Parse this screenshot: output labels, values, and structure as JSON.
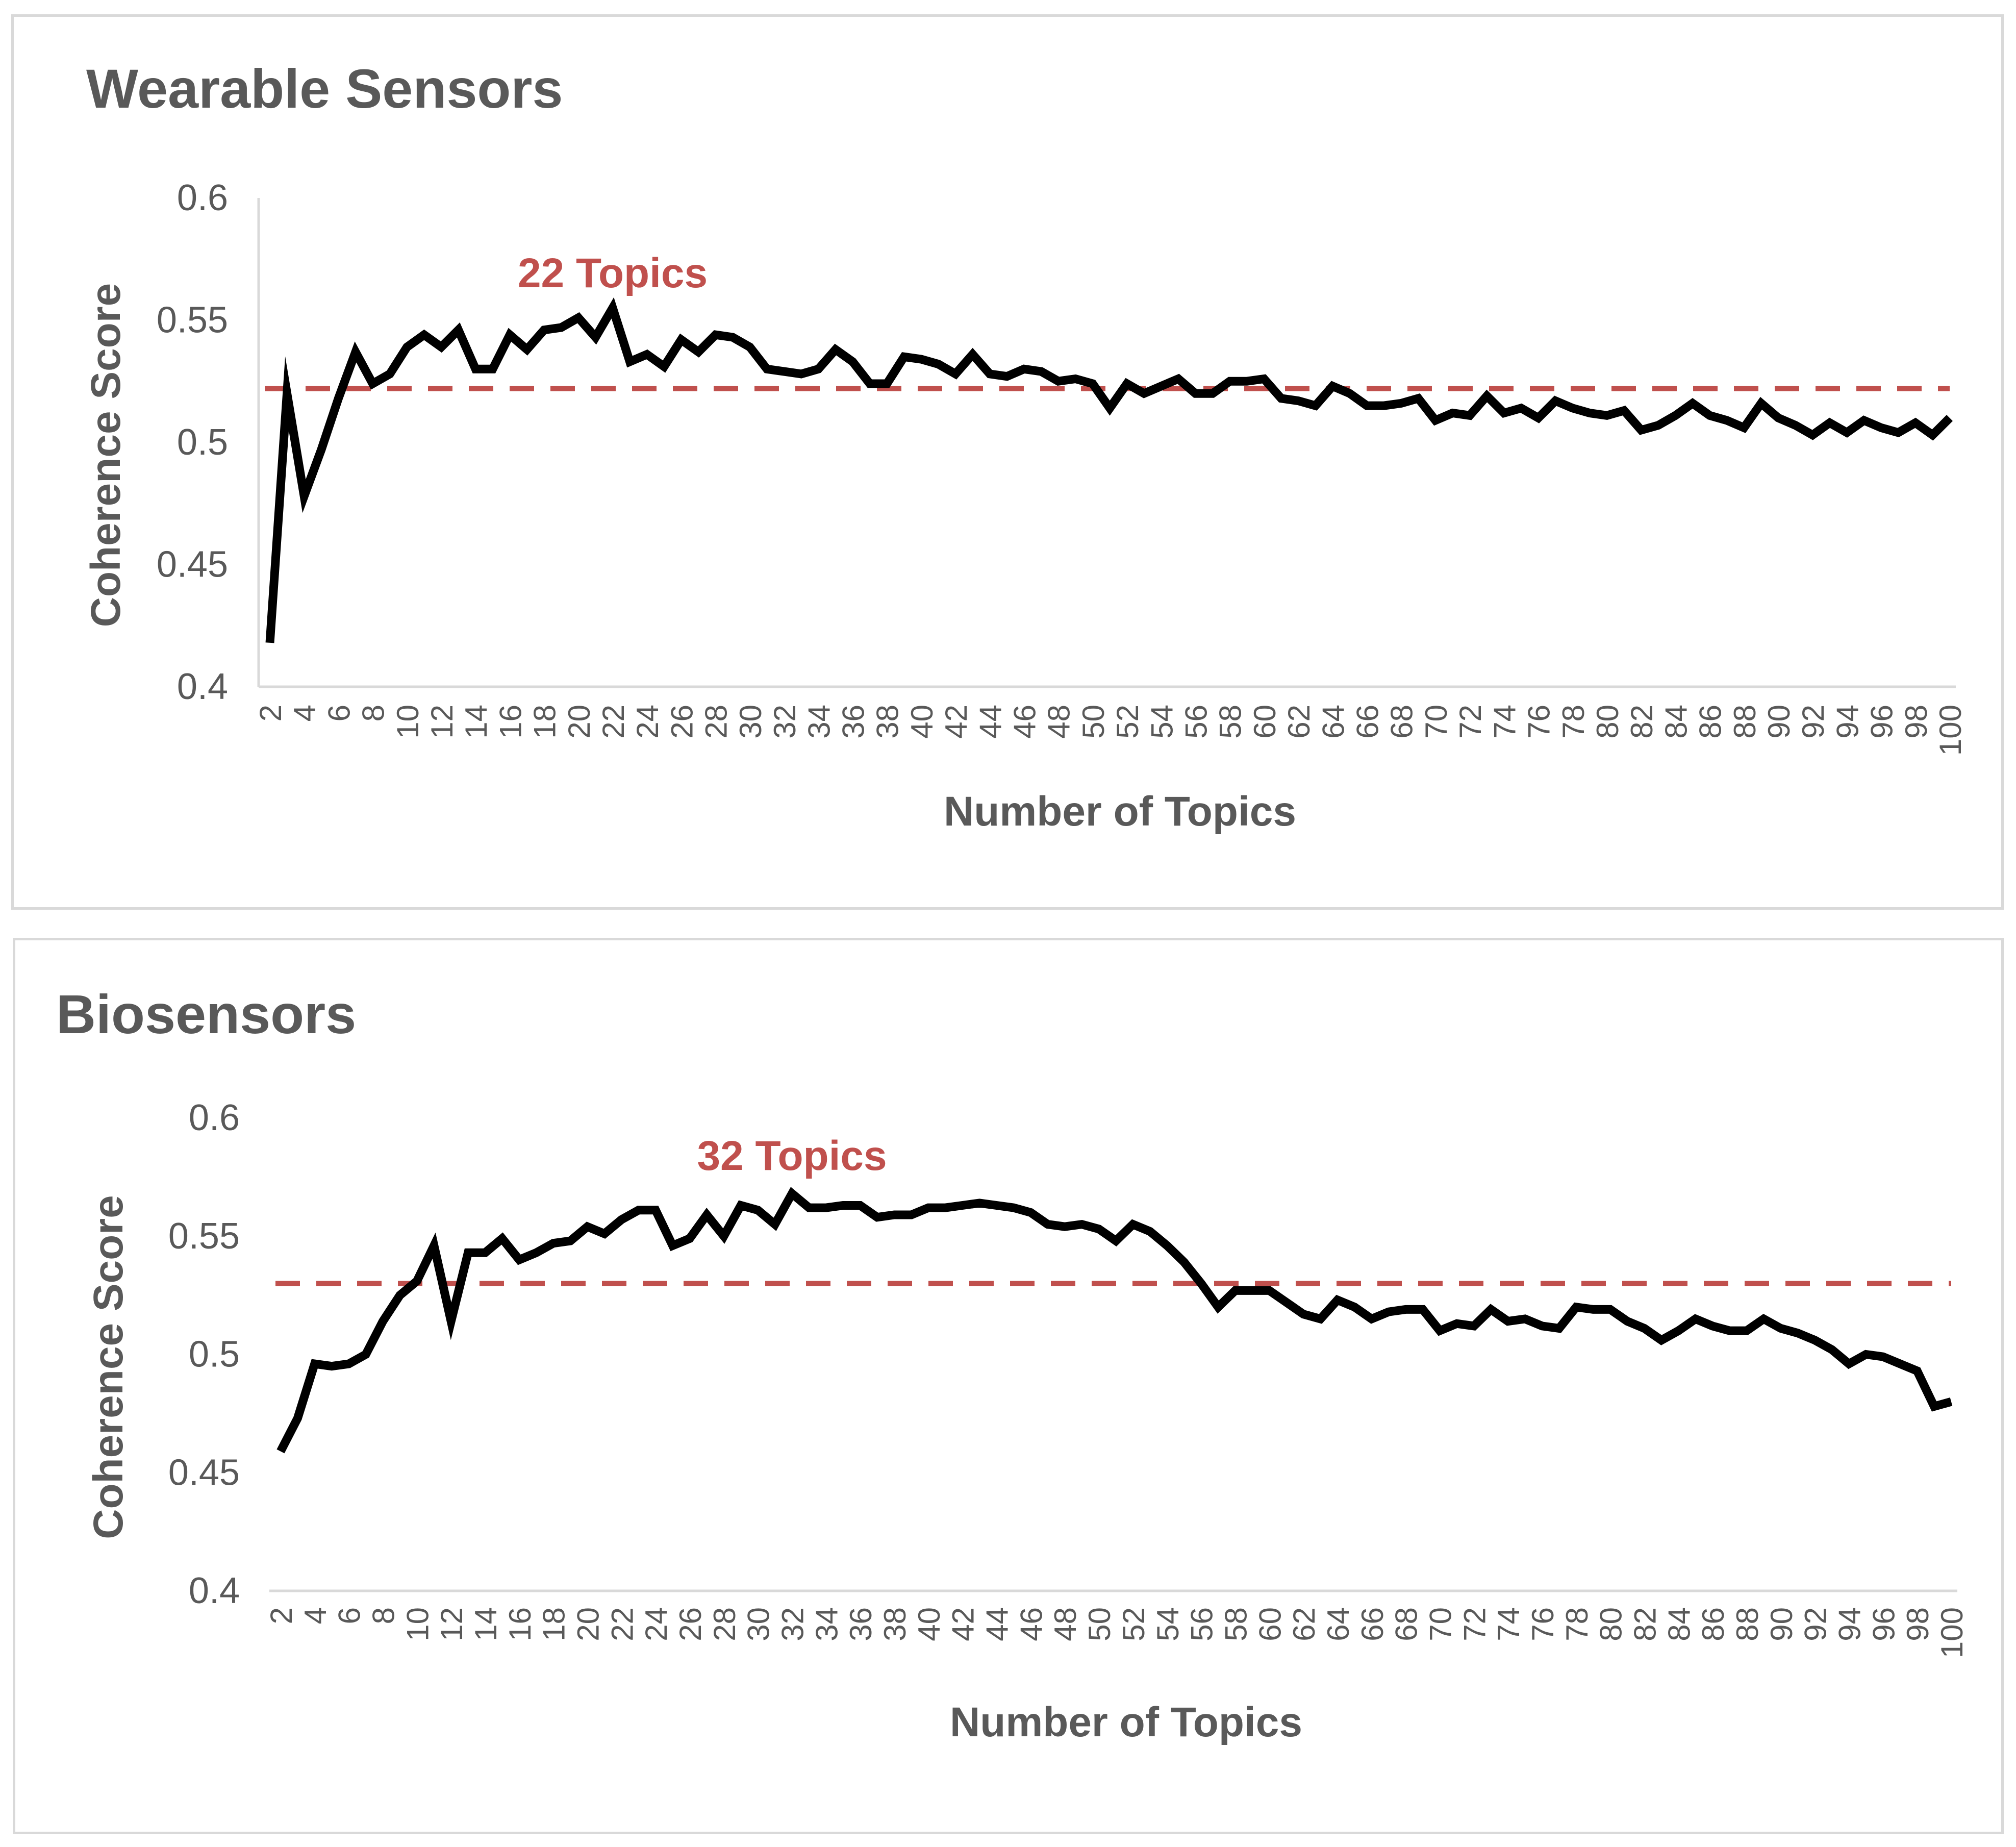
{
  "chart_data": [
    {
      "type": "line",
      "title": "Wearable Sensors",
      "xlabel": "Number of Topics",
      "ylabel": "Coherence Score",
      "ylim": [
        0.4,
        0.6
      ],
      "yticks": [
        "0.4",
        "0.45",
        "0.5",
        "0.55",
        "0.6"
      ],
      "ytick_values": [
        0.4,
        0.45,
        0.5,
        0.55,
        0.6
      ],
      "xtick_labels": [
        "2",
        "4",
        "6",
        "8",
        "10",
        "12",
        "14",
        "16",
        "18",
        "20",
        "22",
        "24",
        "26",
        "28",
        "30",
        "32",
        "34",
        "36",
        "38",
        "40",
        "42",
        "44",
        "46",
        "48",
        "50",
        "52",
        "54",
        "56",
        "58",
        "60",
        "62",
        "64",
        "66",
        "68",
        "70",
        "72",
        "74",
        "76",
        "78",
        "80",
        "82",
        "84",
        "86",
        "88",
        "90",
        "92",
        "94",
        "96",
        "98",
        "100"
      ],
      "series": [
        {
          "name": "Coherence Score",
          "color": "#000000",
          "x": [
            2,
            3,
            4,
            5,
            6,
            7,
            8,
            9,
            10,
            11,
            12,
            13,
            14,
            15,
            16,
            17,
            18,
            19,
            20,
            21,
            22,
            23,
            24,
            25,
            26,
            27,
            28,
            29,
            30,
            31,
            32,
            33,
            34,
            35,
            36,
            37,
            38,
            39,
            40,
            41,
            42,
            43,
            44,
            45,
            46,
            47,
            48,
            49,
            50,
            51,
            52,
            53,
            54,
            55,
            56,
            57,
            58,
            59,
            60,
            61,
            62,
            63,
            64,
            65,
            66,
            67,
            68,
            69,
            70,
            71,
            72,
            73,
            74,
            75,
            76,
            77,
            78,
            79,
            80,
            81,
            82,
            83,
            84,
            85,
            86,
            87,
            88,
            89,
            90,
            91,
            92,
            93,
            94,
            95,
            96,
            97,
            98,
            99,
            100
          ],
          "values": [
            0.418,
            0.52,
            0.478,
            0.497,
            0.518,
            0.537,
            0.524,
            0.528,
            0.539,
            0.544,
            0.539,
            0.546,
            0.53,
            0.53,
            0.544,
            0.538,
            0.546,
            0.547,
            0.551,
            0.543,
            0.555,
            0.533,
            0.536,
            0.531,
            0.542,
            0.537,
            0.544,
            0.543,
            0.539,
            0.53,
            0.529,
            0.528,
            0.53,
            0.538,
            0.533,
            0.524,
            0.524,
            0.535,
            0.534,
            0.532,
            0.528,
            0.536,
            0.528,
            0.527,
            0.53,
            0.529,
            0.525,
            0.526,
            0.524,
            0.514,
            0.524,
            0.52,
            0.523,
            0.526,
            0.52,
            0.52,
            0.525,
            0.525,
            0.526,
            0.518,
            0.517,
            0.515,
            0.523,
            0.52,
            0.515,
            0.515,
            0.516,
            0.518,
            0.509,
            0.512,
            0.511,
            0.519,
            0.512,
            0.514,
            0.51,
            0.517,
            0.514,
            0.512,
            0.511,
            0.513,
            0.505,
            0.507,
            0.511,
            0.516,
            0.511,
            0.509,
            0.506,
            0.516,
            0.51,
            0.507,
            0.503,
            0.508,
            0.504,
            0.509,
            0.506,
            0.504,
            0.508,
            0.503,
            0.51
          ]
        }
      ],
      "reference_line": {
        "y": 0.522,
        "color": "#c0504d",
        "style": "dashed"
      },
      "annotation": {
        "text": "22 Topics",
        "x": 22,
        "color": "#c0504d"
      },
      "grid": false,
      "legend": "none"
    },
    {
      "type": "line",
      "title": "Biosensors",
      "xlabel": "Number of Topics",
      "ylabel": "Coherence Score",
      "ylim": [
        0.4,
        0.6
      ],
      "yticks": [
        "0.4",
        "0.45",
        "0.5",
        "0.55",
        "0.6"
      ],
      "ytick_values": [
        0.4,
        0.45,
        0.5,
        0.55,
        0.6
      ],
      "xtick_labels": [
        "2",
        "4",
        "6",
        "8",
        "10",
        "12",
        "14",
        "16",
        "18",
        "20",
        "22",
        "24",
        "26",
        "28",
        "30",
        "32",
        "34",
        "36",
        "38",
        "40",
        "42",
        "44",
        "46",
        "48",
        "50",
        "52",
        "54",
        "56",
        "58",
        "60",
        "62",
        "64",
        "66",
        "68",
        "70",
        "72",
        "74",
        "76",
        "78",
        "80",
        "82",
        "84",
        "86",
        "88",
        "90",
        "92",
        "94",
        "96",
        "98",
        "100"
      ],
      "series": [
        {
          "name": "Coherence Score",
          "color": "#000000",
          "x": [
            2,
            3,
            4,
            5,
            6,
            7,
            8,
            9,
            10,
            11,
            12,
            13,
            14,
            15,
            16,
            17,
            18,
            19,
            20,
            21,
            22,
            23,
            24,
            25,
            26,
            27,
            28,
            29,
            30,
            31,
            32,
            33,
            34,
            35,
            36,
            37,
            38,
            39,
            40,
            41,
            42,
            43,
            44,
            45,
            46,
            47,
            48,
            49,
            50,
            51,
            52,
            53,
            54,
            55,
            56,
            57,
            58,
            59,
            60,
            61,
            62,
            63,
            64,
            65,
            66,
            67,
            68,
            69,
            70,
            71,
            72,
            73,
            74,
            75,
            76,
            77,
            78,
            79,
            80,
            81,
            82,
            83,
            84,
            85,
            86,
            87,
            88,
            89,
            90,
            91,
            92,
            93,
            94,
            95,
            96,
            97,
            98,
            99,
            100
          ],
          "values": [
            0.459,
            0.473,
            0.496,
            0.495,
            0.496,
            0.5,
            0.514,
            0.525,
            0.531,
            0.546,
            0.514,
            0.543,
            0.543,
            0.549,
            0.54,
            0.543,
            0.547,
            0.548,
            0.554,
            0.551,
            0.557,
            0.561,
            0.561,
            0.546,
            0.549,
            0.559,
            0.55,
            0.563,
            0.561,
            0.555,
            0.568,
            0.562,
            0.562,
            0.563,
            0.563,
            0.558,
            0.559,
            0.559,
            0.562,
            0.562,
            0.563,
            0.564,
            0.563,
            0.562,
            0.56,
            0.555,
            0.554,
            0.555,
            0.553,
            0.548,
            0.555,
            0.552,
            0.546,
            0.539,
            0.53,
            0.52,
            0.527,
            0.527,
            0.527,
            0.522,
            0.517,
            0.515,
            0.523,
            0.52,
            0.515,
            0.518,
            0.519,
            0.519,
            0.51,
            0.513,
            0.512,
            0.519,
            0.514,
            0.515,
            0.512,
            0.511,
            0.52,
            0.519,
            0.519,
            0.514,
            0.511,
            0.506,
            0.51,
            0.515,
            0.512,
            0.51,
            0.51,
            0.515,
            0.511,
            0.509,
            0.506,
            0.502,
            0.496,
            0.5,
            0.499,
            0.496,
            0.493,
            0.478,
            0.48
          ]
        }
      ],
      "reference_line": {
        "y": 0.53,
        "color": "#c0504d",
        "style": "dashed"
      },
      "annotation": {
        "text": "32 Topics",
        "x": 32,
        "color": "#c0504d"
      },
      "grid": false,
      "legend": "none"
    }
  ]
}
